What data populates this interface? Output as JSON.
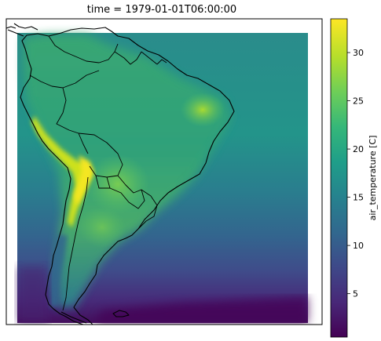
{
  "chart_data": {
    "type": "heatmap",
    "title": "time = 1979-01-01T06:00:00",
    "variable": "air_temperature",
    "colorbar": {
      "label": "air_temperature [C]",
      "ticks": [
        5,
        10,
        15,
        20,
        25,
        30
      ],
      "range": [
        0.5,
        33.5
      ],
      "colormap": "viridis",
      "colors": [
        "#440154",
        "#482878",
        "#3e4989",
        "#31688e",
        "#26828e",
        "#1f9e89",
        "#35b779",
        "#6ece58",
        "#b5de2b",
        "#fde725"
      ]
    },
    "map_extent": {
      "lon": [
        -92,
        -32
      ],
      "lat": [
        -57,
        13
      ],
      "region": "South America"
    },
    "grid": false
  }
}
